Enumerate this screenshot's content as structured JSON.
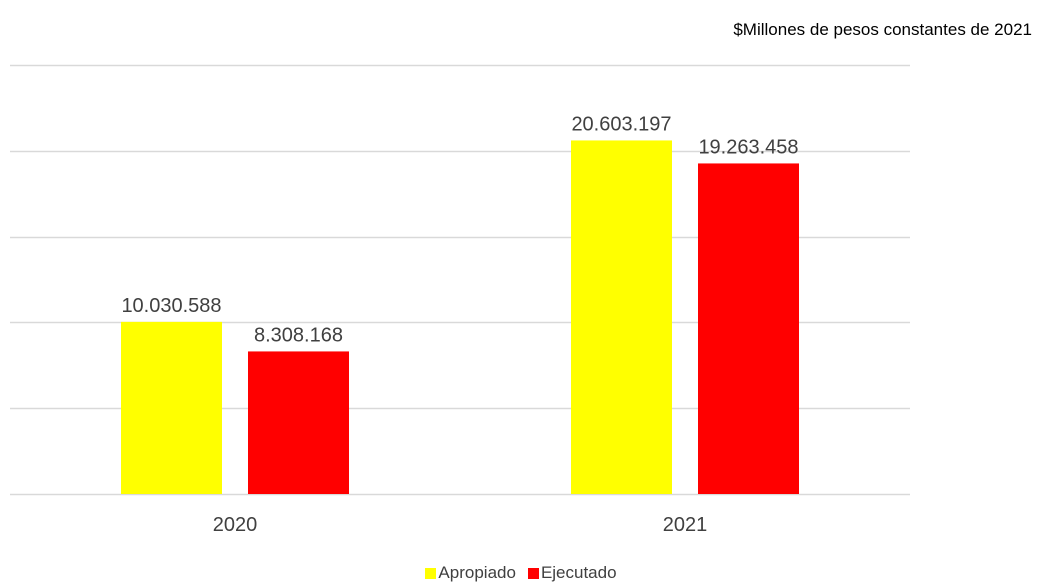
{
  "unit_note": "$Millones de pesos constantes de 2021",
  "chart_data": {
    "type": "bar",
    "title": "",
    "xlabel": "",
    "ylabel": "",
    "categories": [
      "2020",
      "2021"
    ],
    "series": [
      {
        "name": "Apropiado",
        "color": "#FFFF00",
        "values": [
          10030588,
          20603197
        ],
        "labels": [
          "10.030.588",
          "20.603.197"
        ]
      },
      {
        "name": "Ejecutado",
        "color": "#FF0000",
        "values": [
          8308168,
          19263458
        ],
        "labels": [
          "8.308.168",
          "19.263.458"
        ]
      }
    ],
    "ylim": [
      0,
      25000000
    ],
    "ytick_step": 5000000,
    "show_y_tick_labels": false,
    "grid": true,
    "legend": "bottom-center"
  }
}
